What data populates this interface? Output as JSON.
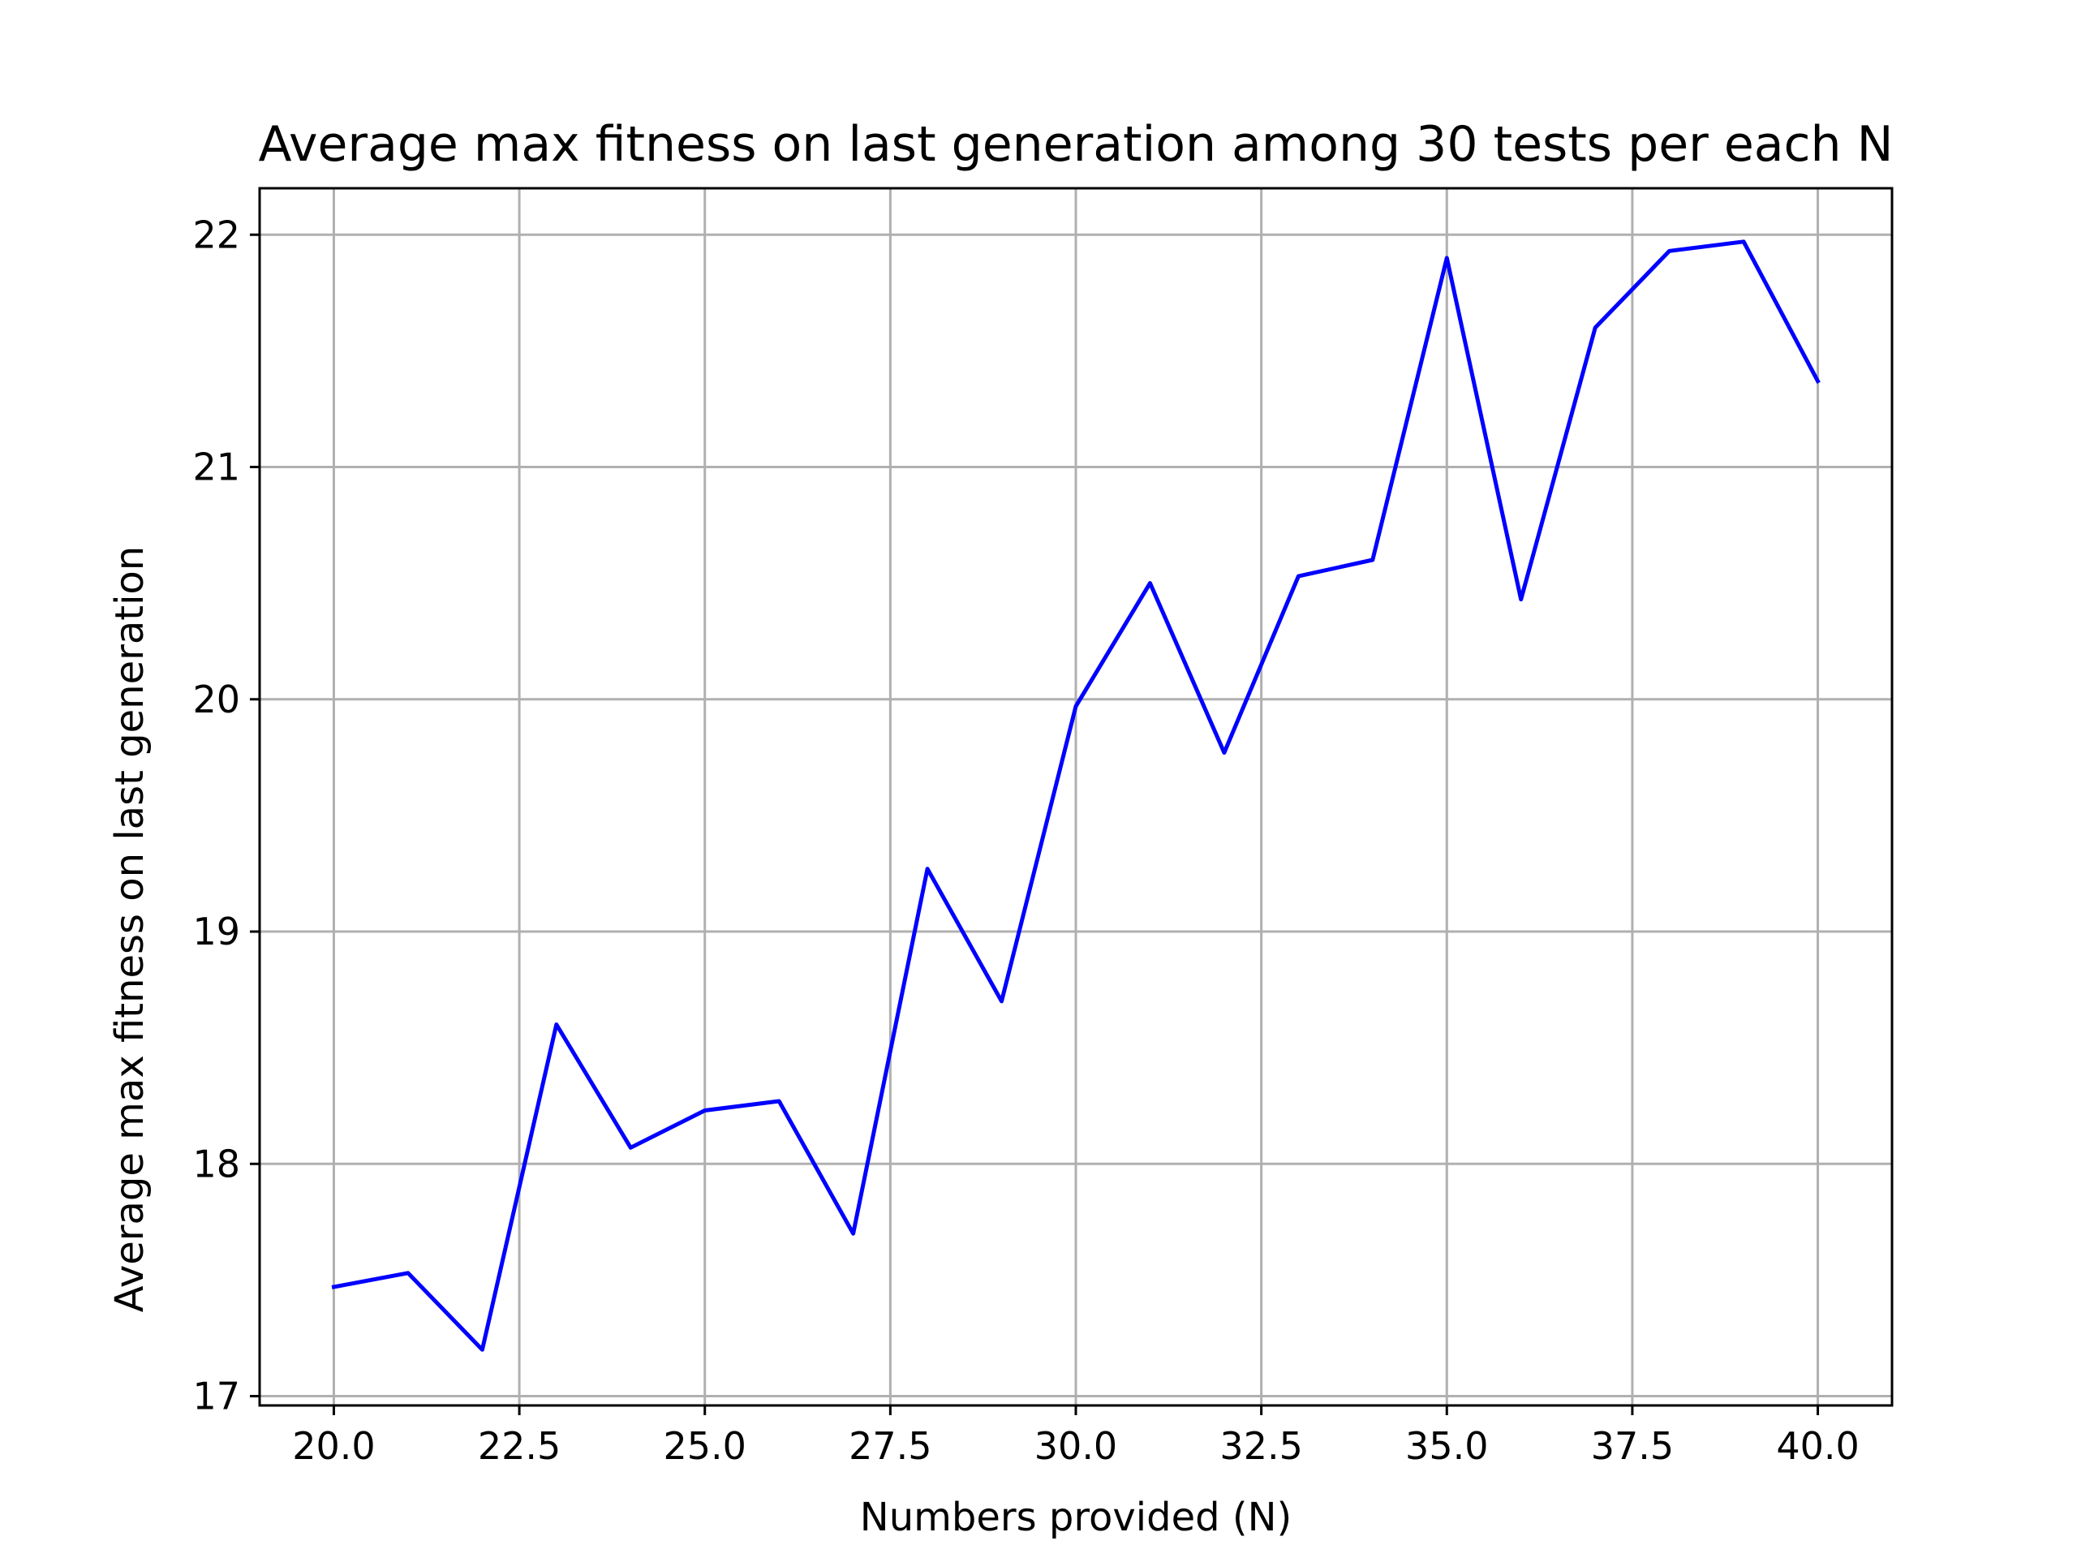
{
  "chart_data": {
    "type": "line",
    "title": "Average max fitness on last generation among 30 tests per each N",
    "xlabel": "Numbers provided (N)",
    "ylabel": "Average max fitness on last generation",
    "xlim": [
      19.0,
      41.0
    ],
    "ylim": [
      16.96,
      22.2
    ],
    "xticks": [
      20.0,
      22.5,
      25.0,
      27.5,
      30.0,
      32.5,
      35.0,
      37.5,
      40.0
    ],
    "xtick_labels": [
      "20.0",
      "22.5",
      "25.0",
      "27.5",
      "30.0",
      "32.5",
      "35.0",
      "37.5",
      "40.0"
    ],
    "yticks": [
      17,
      18,
      19,
      20,
      21,
      22
    ],
    "ytick_labels": [
      "17",
      "18",
      "19",
      "20",
      "21",
      "22"
    ],
    "grid": true,
    "series": [
      {
        "color": "#0000ff",
        "x": [
          20,
          21,
          22,
          23,
          24,
          25,
          26,
          27,
          28,
          29,
          30,
          31,
          32,
          33,
          34,
          35,
          36,
          37,
          38,
          39,
          40
        ],
        "y": [
          17.47,
          17.53,
          17.2,
          18.6,
          18.07,
          18.23,
          18.27,
          17.7,
          19.27,
          18.7,
          19.97,
          20.5,
          19.77,
          20.53,
          20.6,
          21.9,
          20.43,
          21.6,
          21.93,
          21.97,
          21.37
        ]
      }
    ]
  }
}
